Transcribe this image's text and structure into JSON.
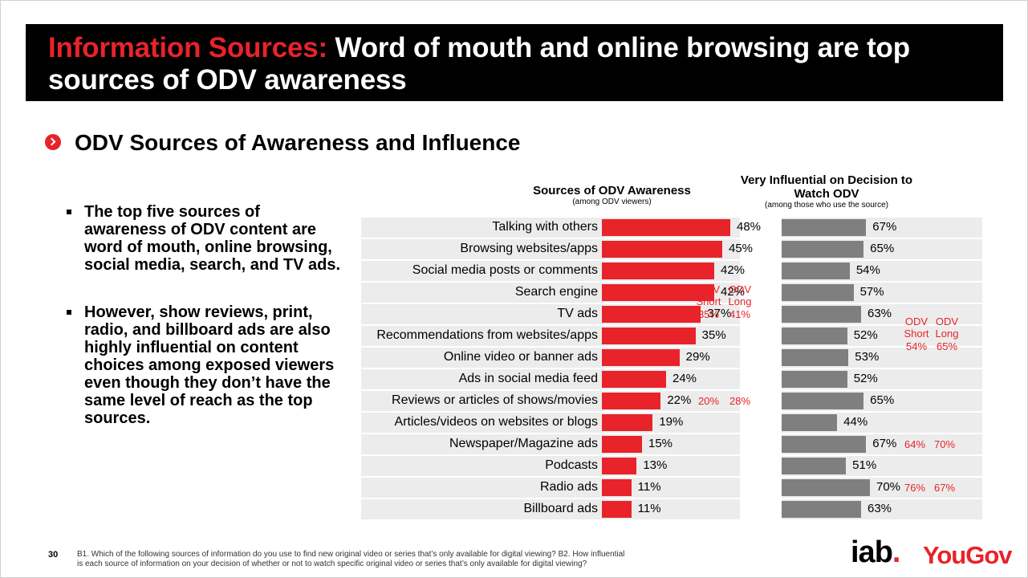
{
  "title": {
    "accent": "Information Sources:",
    "main": " Word of mouth and online browsing are top sources of ODV awareness"
  },
  "section_title": "ODV Sources of Awareness and Influence",
  "bullets": [
    "The top five sources of awareness of ODV content are word of mouth, online browsing, social media, search, and TV ads.",
    "However, show reviews, print, radio, and billboard ads are also highly influential on content choices among exposed viewers even though they don’t have the same level of reach as the top sources."
  ],
  "chart_data": [
    {
      "type": "bar",
      "orientation": "horizontal",
      "title": "Sources of ODV Awareness",
      "subtitle": "(among ODV viewers)",
      "categories": [
        "Talking with others",
        "Browsing websites/apps",
        "Social media posts or comments",
        "Search engine",
        "TV ads",
        "Recommendations from websites/apps",
        "Online video or banner ads",
        "Ads in social media feed",
        "Reviews or articles of shows/movies",
        "Articles/videos on websites or blogs",
        "Newspaper/Magazine ads",
        "Podcasts",
        "Radio ads",
        "Billboard ads"
      ],
      "values": [
        48,
        45,
        42,
        42,
        37,
        35,
        29,
        24,
        22,
        19,
        15,
        13,
        11,
        11
      ],
      "labels": [
        "48%",
        "45%",
        "42%",
        "42%",
        "37%",
        "35%",
        "29%",
        "24%",
        "22%",
        "19%",
        "15%",
        "13%",
        "11%",
        "11%"
      ],
      "color": "#e8232a",
      "annotations": [
        {
          "header_top": "ODV",
          "header_bottom": "Short",
          "row": 4,
          "value": "35%"
        },
        {
          "header_top": "ODV",
          "header_bottom": "Long",
          "row": 4,
          "value": "41%"
        },
        {
          "row": 8,
          "value": "20%"
        },
        {
          "row": 8,
          "value": "28%"
        }
      ]
    },
    {
      "type": "bar",
      "orientation": "horizontal",
      "title": "Very Influential on Decision to Watch ODV",
      "subtitle": "(among those who use the source)",
      "categories": [
        "Talking with others",
        "Browsing websites/apps",
        "Social media posts or comments",
        "Search engine",
        "TV ads",
        "Recommendations from websites/apps",
        "Online video or banner ads",
        "Ads in social media feed",
        "Reviews or articles of shows/movies",
        "Articles/videos on websites or blogs",
        "Newspaper/Magazine ads",
        "Podcasts",
        "Radio ads",
        "Billboard ads"
      ],
      "values": [
        67,
        65,
        54,
        57,
        63,
        52,
        53,
        52,
        65,
        44,
        67,
        51,
        70,
        63
      ],
      "labels": [
        "67%",
        "65%",
        "54%",
        "57%",
        "63%",
        "52%",
        "53%",
        "52%",
        "65%",
        "44%",
        "67%",
        "51%",
        "70%",
        "63%"
      ],
      "color": "#7f7f7f",
      "annotations": [
        {
          "header_top": "ODV",
          "header_bottom": "Short",
          "row": 5,
          "value": "54%"
        },
        {
          "header_top": "ODV",
          "header_bottom": "Long",
          "row": 5,
          "value": "65%"
        },
        {
          "row": 10,
          "value": "64%"
        },
        {
          "row": 10,
          "value": "70%"
        },
        {
          "row": 12,
          "value": "76%"
        },
        {
          "row": 12,
          "value": "67%"
        }
      ]
    }
  ],
  "footer": {
    "page_number": "30",
    "footnote_line1": "B1. Which of the following sources of information do you use to find new original video or series that’s only available for digital viewing? B2. How influential",
    "footnote_line2": "is each source of information on your decision of whether or not to watch specific original video or series that’s only available for digital viewing?",
    "logo_iab": "iab",
    "logo_iab_dot": ".",
    "logo_yougov": "YouGov"
  }
}
